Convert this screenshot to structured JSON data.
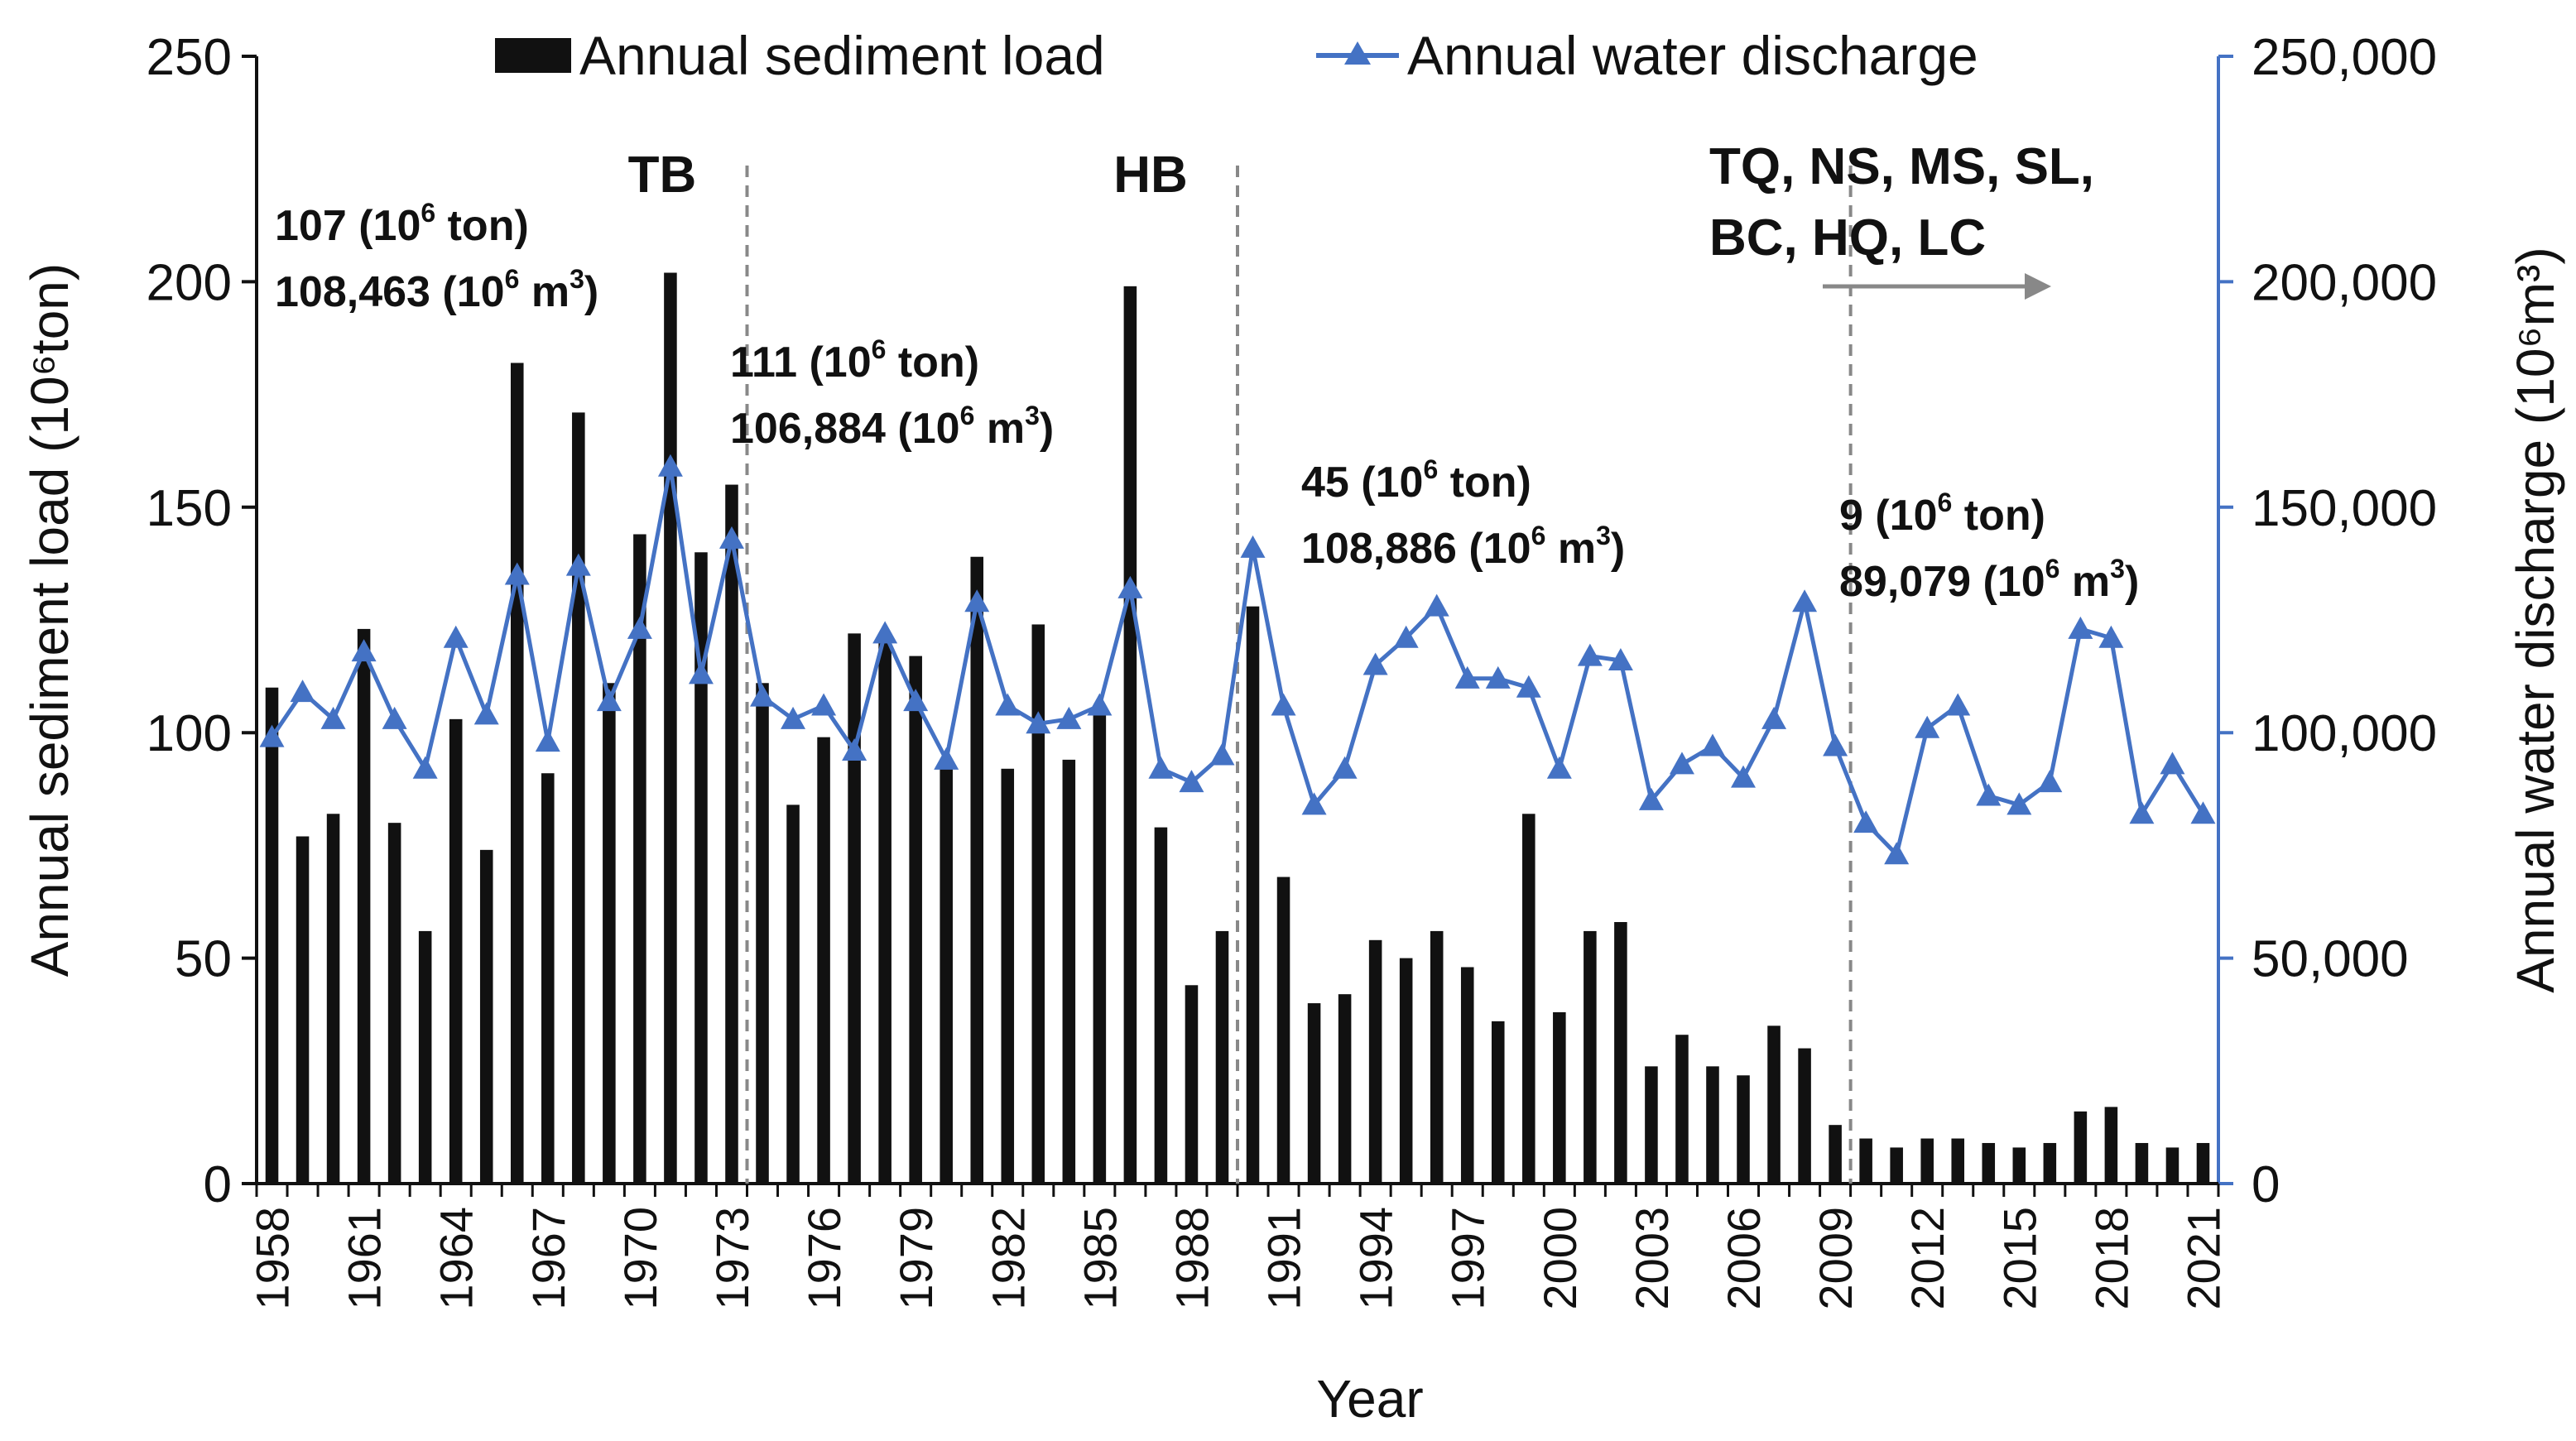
{
  "chart_data": {
    "type": "bar+line",
    "title": "",
    "xlabel": "Year",
    "y_left_label": "Annual sediment load (10⁶ton)",
    "y_right_label": "Annual water discharge (10⁶m³)",
    "y_left_lim": [
      0,
      250
    ],
    "y_right_lim": [
      0,
      250000
    ],
    "y_left_ticks": [
      "0",
      "50",
      "100",
      "150",
      "200",
      "250"
    ],
    "y_right_ticks": [
      "0",
      "50,000",
      "100,000",
      "150,000",
      "200,000",
      "250,000"
    ],
    "x_tick_labels": [
      "1958",
      "1961",
      "1964",
      "1967",
      "1970",
      "1973",
      "1976",
      "1979",
      "1982",
      "1985",
      "1988",
      "1991",
      "1994",
      "1997",
      "2000",
      "2003",
      "2006",
      "2009",
      "2012",
      "2015",
      "2018",
      "2021"
    ],
    "years": [
      1958,
      1959,
      1960,
      1961,
      1962,
      1963,
      1964,
      1965,
      1966,
      1967,
      1968,
      1969,
      1970,
      1971,
      1972,
      1973,
      1974,
      1975,
      1976,
      1977,
      1978,
      1979,
      1980,
      1981,
      1982,
      1983,
      1984,
      1985,
      1986,
      1987,
      1988,
      1989,
      1990,
      1991,
      1992,
      1993,
      1994,
      1995,
      1996,
      1997,
      1998,
      1999,
      2000,
      2001,
      2002,
      2003,
      2004,
      2005,
      2006,
      2007,
      2008,
      2009,
      2010,
      2011,
      2012,
      2013,
      2014,
      2015,
      2016,
      2017,
      2018,
      2019,
      2020,
      2021
    ],
    "series": [
      {
        "name": "Annual sediment load",
        "type": "bar",
        "axis": "left",
        "color": "#111111",
        "values": [
          110,
          77,
          82,
          123,
          80,
          56,
          103,
          74,
          182,
          91,
          171,
          111,
          144,
          202,
          140,
          155,
          111,
          84,
          99,
          122,
          120,
          117,
          93,
          139,
          92,
          124,
          94,
          105,
          199,
          79,
          44,
          56,
          128,
          68,
          40,
          42,
          54,
          50,
          56,
          48,
          36,
          82,
          38,
          56,
          58,
          26,
          33,
          26,
          24,
          35,
          30,
          13,
          10,
          8,
          10,
          10,
          9,
          8,
          9,
          16,
          17,
          9,
          8,
          9
        ]
      },
      {
        "name": "Annual water discharge",
        "type": "line",
        "axis": "right",
        "color": "#4472C4",
        "marker": "triangle",
        "values": [
          99000,
          109000,
          103000,
          118000,
          103000,
          92000,
          121000,
          104000,
          135000,
          98000,
          137000,
          107000,
          123000,
          159000,
          113000,
          143000,
          108000,
          103000,
          106000,
          96000,
          122000,
          107000,
          94000,
          129000,
          106000,
          102000,
          103000,
          106000,
          132000,
          92000,
          89000,
          95000,
          141000,
          106000,
          84000,
          92000,
          115000,
          121000,
          128000,
          112000,
          112000,
          110000,
          92000,
          117000,
          116000,
          85000,
          93000,
          97000,
          90000,
          103000,
          129000,
          97000,
          80000,
          73000,
          101000,
          106000,
          86000,
          84000,
          89000,
          123000,
          121000,
          82000,
          93000,
          82000
        ]
      }
    ],
    "legend": {
      "position": "top-center",
      "entries": [
        "Annual sediment load",
        "Annual water discharge"
      ]
    },
    "event_lines": [
      {
        "label": "TB",
        "year": 1973
      },
      {
        "label": "HB",
        "year": 1989
      },
      {
        "label": "TQ, NS, MS, SL,",
        "label_line2": "BC, HQ, LC",
        "year": 2009
      }
    ],
    "period_annotations": [
      {
        "sediment": "107 (10",
        "sediment_sup": "6",
        "sediment_unit": " ton)",
        "water": "108,463 (10",
        "water_sup": "6",
        "water_unit": " m",
        "water_unit_sup": "3",
        "water_close": ")"
      },
      {
        "sediment": "111 (10",
        "sediment_sup": "6",
        "sediment_unit": " ton)",
        "water": "106,884 (10",
        "water_sup": "6",
        "water_unit": " m",
        "water_unit_sup": "3",
        "water_close": ")"
      },
      {
        "sediment": "45 (10",
        "sediment_sup": "6",
        "sediment_unit": " ton)",
        "water": "108,886 (10",
        "water_sup": "6",
        "water_unit": " m",
        "water_unit_sup": "3",
        "water_close": ")"
      },
      {
        "sediment": "9 (10",
        "sediment_sup": "6",
        "sediment_unit": " ton)",
        "water": "89,079 (10",
        "water_sup": "6",
        "water_unit": " m",
        "water_unit_sup": "3",
        "water_close": ")"
      }
    ]
  }
}
